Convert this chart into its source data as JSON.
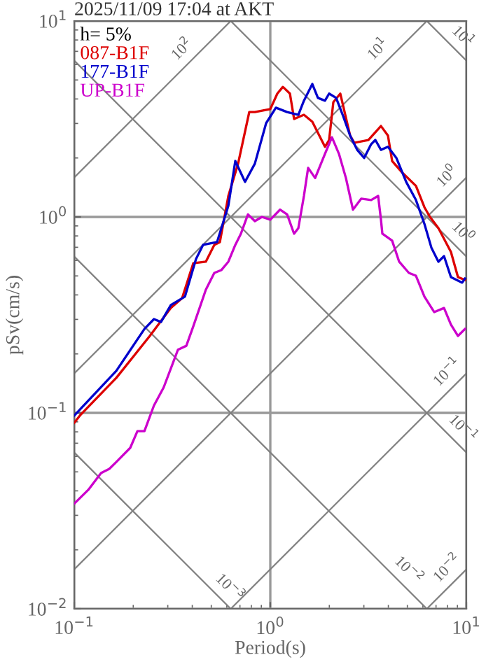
{
  "chart_data": {
    "type": "line",
    "title": "2025/11/09 17:04 at AKT",
    "xlabel": "Period(s)",
    "ylabel": "pSv(cm/s)",
    "legend_title": "h= 5%",
    "log": "xy",
    "grid": true,
    "legend": "top left",
    "xlim": [
      0.1,
      10
    ],
    "ylim": [
      0.01,
      10
    ],
    "xticks": [
      {
        "value": 0.1,
        "label": "10$^{−1}$"
      },
      {
        "value": 1,
        "label": "10$^{0}$"
      },
      {
        "value": 10,
        "label": "10$^{1}$"
      }
    ],
    "yticks": [
      {
        "value": 0.01,
        "label": "10$^{−2}$"
      },
      {
        "value": 0.1,
        "label": "10$^{−1}$"
      },
      {
        "value": 1,
        "label": "10$^{0}$"
      },
      {
        "value": 10,
        "label": "10$^{1}$"
      }
    ],
    "series": [
      {
        "color": "#808080",
        "x": [
          6.283,
          10
        ],
        "values": [
          0.01,
          0.0159
        ]
      },
      {
        "color": "#808080",
        "x": [
          0.6283,
          10
        ],
        "values": [
          0.01,
          0.159
        ]
      },
      {
        "color": "#808080",
        "x": [
          0.1,
          10
        ],
        "values": [
          0.0159,
          1.59
        ]
      },
      {
        "color": "#808080",
        "x": [
          0.1,
          6.283
        ],
        "values": [
          0.159,
          10
        ]
      },
      {
        "color": "#808080",
        "x": [
          0.1,
          0.6283
        ],
        "values": [
          1.59,
          10
        ]
      },
      {
        "color": "#808080",
        "x": [
          0.1,
          0.6283
        ],
        "values": [
          0.0628,
          0.01
        ]
      },
      {
        "color": "#808080",
        "x": [
          0.1,
          6.283
        ],
        "values": [
          0.628,
          0.01
        ]
      },
      {
        "color": "#808080",
        "x": [
          0.1,
          10
        ],
        "values": [
          6.28,
          0.0628
        ]
      },
      {
        "color": "#808080",
        "x": [
          0.6283,
          10
        ],
        "values": [
          10,
          0.628
        ]
      },
      {
        "color": "#808080",
        "x": [
          6.283,
          10
        ],
        "values": [
          10,
          6.28
        ]
      },
      {
        "name": "087-B1F",
        "color": "#dd0000",
        "x": [
          0.1,
          0.107,
          0.164,
          0.243,
          0.311,
          0.355,
          0.405,
          0.469,
          0.518,
          0.553,
          0.611,
          0.685,
          0.781,
          0.834,
          1.0,
          1.086,
          1.159,
          1.259,
          1.322,
          1.484,
          1.638,
          1.778,
          1.9,
          1.995,
          2.096,
          2.275,
          2.553,
          2.683,
          3.162,
          3.667,
          3.981,
          4.181,
          4.69,
          5.53,
          6.11,
          6.52,
          7.2,
          8.34,
          9.06,
          9.84
        ],
        "values": [
          0.089,
          0.097,
          0.151,
          0.247,
          0.343,
          0.385,
          0.581,
          0.591,
          0.72,
          0.744,
          1.28,
          1.87,
          3.43,
          3.43,
          3.55,
          4.26,
          4.61,
          4.26,
          3.16,
          3.32,
          3.06,
          2.6,
          2.28,
          2.47,
          3.85,
          4.26,
          2.6,
          2.39,
          2.47,
          2.91,
          2.6,
          1.93,
          1.69,
          1.44,
          1.12,
          1.0,
          0.877,
          0.663,
          0.493,
          0.477
        ]
      },
      {
        "name": "177-B1F",
        "color": "#0000cc",
        "x": [
          0.1,
          0.107,
          0.164,
          0.228,
          0.255,
          0.277,
          0.311,
          0.367,
          0.418,
          0.454,
          0.535,
          0.611,
          0.663,
          0.743,
          0.834,
          0.952,
          1.068,
          1.218,
          1.39,
          1.484,
          1.638,
          1.749,
          1.9,
          1.995,
          2.166,
          2.352,
          2.553,
          2.773,
          3.01,
          3.268,
          3.433,
          3.667,
          3.981,
          4.394,
          4.93,
          5.53,
          6.11,
          6.63,
          7.2,
          7.69,
          8.34,
          9.52,
          9.84
        ],
        "values": [
          0.0968,
          0.104,
          0.164,
          0.268,
          0.301,
          0.291,
          0.355,
          0.392,
          0.611,
          0.72,
          0.744,
          1.14,
          1.93,
          1.51,
          1.87,
          3.01,
          3.61,
          3.43,
          3.32,
          3.92,
          4.77,
          4.05,
          3.92,
          4.26,
          4.05,
          3.27,
          2.6,
          2.2,
          2.0,
          2.35,
          2.47,
          2.2,
          2.28,
          2.0,
          1.51,
          1.22,
          0.921,
          0.697,
          0.591,
          0.631,
          0.493,
          0.462,
          0.485
        ]
      },
      {
        "name": "UP-B1F",
        "color": "#cc00cc",
        "x": [
          0.1,
          0.118,
          0.137,
          0.151,
          0.164,
          0.193,
          0.21,
          0.228,
          0.255,
          0.286,
          0.338,
          0.373,
          0.405,
          0.469,
          0.518,
          0.562,
          0.611,
          0.663,
          0.708,
          0.769,
          0.834,
          0.906,
          1.0,
          1.122,
          1.218,
          1.322,
          1.39,
          1.484,
          1.559,
          1.693,
          1.9,
          2.062,
          2.239,
          2.43,
          2.64,
          2.911,
          3.268,
          3.548,
          3.667,
          3.728,
          4.181,
          4.54,
          5.09,
          5.53,
          6.11,
          6.85,
          7.69,
          8.34,
          9.06,
          9.84
        ],
        "values": [
          0.0344,
          0.0405,
          0.0493,
          0.0518,
          0.0562,
          0.0663,
          0.0807,
          0.0807,
          0.109,
          0.135,
          0.21,
          0.22,
          0.277,
          0.425,
          0.518,
          0.535,
          0.591,
          0.72,
          0.821,
          1.03,
          0.952,
          1.0,
          0.968,
          1.09,
          1.03,
          0.821,
          0.877,
          1.28,
          1.78,
          1.58,
          2.1,
          2.55,
          2.1,
          1.58,
          1.09,
          1.24,
          1.22,
          1.28,
          0.968,
          0.821,
          0.757,
          0.591,
          0.518,
          0.501,
          0.392,
          0.327,
          0.343,
          0.282,
          0.247,
          0.268
        ]
      }
    ],
    "annotations": [
      {
        "text": "10$^{2}$",
        "x": 0.4,
        "y": 6.37
      },
      {
        "text": "10$^{1}$",
        "x": 4.0,
        "y": 6.37
      },
      {
        "text": "10$^{0}$",
        "x": 9.0,
        "y": 1.43
      },
      {
        "text": "10$^{−1}$",
        "x": 9.0,
        "y": 0.143
      },
      {
        "text": "10$^{−2}$",
        "x": 9.0,
        "y": 0.0143
      },
      {
        "text": "10$^{1}$",
        "x": 8.5,
        "y": 7.39
      },
      {
        "text": "10$^{0}$",
        "x": 8.5,
        "y": 0.739
      },
      {
        "text": "10$^{−1}$",
        "x": 8.5,
        "y": 0.0739
      },
      {
        "text": "10$^{−2}$",
        "x": 4.5,
        "y": 0.014
      },
      {
        "text": "10$^{−3}$",
        "x": 0.55,
        "y": 0.0114
      }
    ]
  }
}
